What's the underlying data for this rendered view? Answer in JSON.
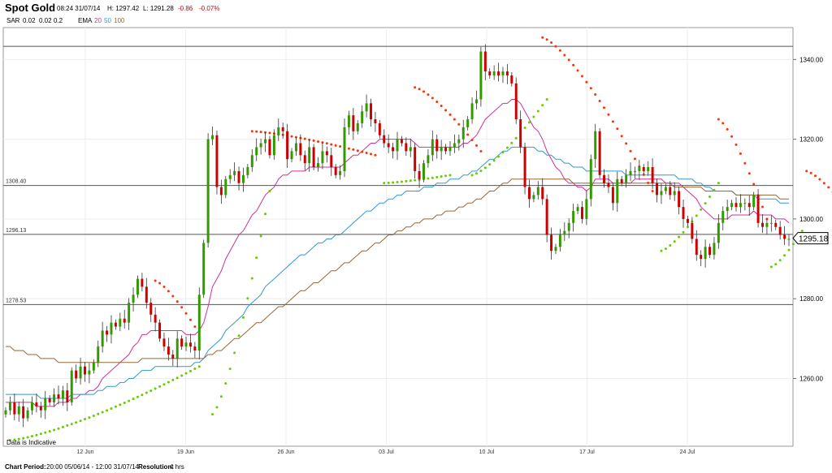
{
  "header": {
    "title": "Spot Gold",
    "timestamp": "08:24 31/07/14",
    "high": "H: 1297.42",
    "low": "L: 1291.28",
    "change": "-0.86",
    "change_pct": "-0.07%"
  },
  "legend": {
    "sar_label": "SAR",
    "sar_params": [
      "0.02",
      "0.02",
      "0.2"
    ],
    "ema_label": "EMA",
    "ema_periods": [
      "20",
      "50",
      "100"
    ],
    "ema_colors": [
      "#cc3399",
      "#3399cc",
      "#996633"
    ]
  },
  "colors": {
    "up": "#339900",
    "down": "#cc0000",
    "sar_up": "#66cc00",
    "sar_down": "#ff3300",
    "change": "#cc0000"
  },
  "footer": {
    "indicative": "Data is Indicative",
    "period_label": "Chart Period:",
    "period_value": "20:00 05/06/14 - 12:00 31/07/14",
    "resolution_label": "Resolution:",
    "resolution_value": "4 hrs"
  },
  "chart_data": {
    "type": "candlestick",
    "ylim": [
      1243,
      1348
    ],
    "y_ticks": [
      "1340.00",
      "1320.00",
      "1300.00",
      "1280.00",
      "1260.00"
    ],
    "y_tick_values": [
      1340,
      1320,
      1300,
      1280,
      1260
    ],
    "x_ticks": [
      "12 Jun",
      "19 Jun",
      "26 Jun",
      "03 Jul",
      "10 Jul",
      "17 Jul",
      "24 Jul"
    ],
    "current_price": "1295.18",
    "current_value": 1295.18,
    "levels": [
      {
        "label": "1308.40",
        "value": 1308.4
      },
      {
        "label": "1296.13",
        "value": 1296.13
      },
      {
        "label": "1278.53",
        "value": 1278.53
      },
      {
        "label": "",
        "value": 1343.3
      }
    ],
    "closes": [
      1252,
      1254,
      1251,
      1253,
      1250,
      1252,
      1254,
      1253,
      1252,
      1255,
      1254,
      1256,
      1255,
      1257,
      1254,
      1262,
      1260,
      1263,
      1261,
      1262,
      1264,
      1268,
      1272,
      1271,
      1274,
      1273,
      1275,
      1274,
      1279,
      1281,
      1285,
      1283,
      1279,
      1276,
      1274,
      1270,
      1268,
      1266,
      1265,
      1270,
      1268,
      1269,
      1268,
      1267,
      1281,
      1294,
      1320,
      1321,
      1308,
      1306,
      1310,
      1311,
      1312,
      1309,
      1311,
      1313,
      1316,
      1318,
      1319,
      1320,
      1316,
      1321,
      1323,
      1322,
      1315,
      1317,
      1319,
      1316,
      1314,
      1318,
      1313,
      1314,
      1317,
      1316,
      1313,
      1311,
      1312,
      1323,
      1326,
      1322,
      1324,
      1327,
      1329,
      1325,
      1324,
      1321,
      1319,
      1318,
      1317,
      1320,
      1319,
      1317,
      1318,
      1312,
      1310,
      1314,
      1316,
      1320,
      1317,
      1318,
      1317,
      1318,
      1319,
      1320,
      1323,
      1325,
      1329,
      1330,
      1342,
      1337,
      1336,
      1337,
      1336,
      1337,
      1336,
      1334,
      1325,
      1318,
      1308,
      1305,
      1306,
      1308,
      1305,
      1296,
      1292,
      1293,
      1296,
      1297,
      1299,
      1302,
      1303,
      1300,
      1305,
      1315,
      1322,
      1311,
      1309,
      1308,
      1304,
      1310,
      1309,
      1311,
      1312,
      1312,
      1313,
      1312,
      1313,
      1309,
      1306,
      1307,
      1308,
      1306,
      1307,
      1303,
      1300,
      1299,
      1295,
      1291,
      1290,
      1293,
      1291,
      1294,
      1299,
      1302,
      1303,
      1304,
      1303,
      1304,
      1304,
      1303,
      1306,
      1299,
      1298,
      1299,
      1299,
      1298,
      1296,
      1295,
      1295
    ],
    "ema_20": [
      1254,
      1254,
      1254,
      1254,
      1254,
      1254,
      1254,
      1253,
      1253,
      1253,
      1253,
      1253,
      1254,
      1254,
      1254,
      1255,
      1255,
      1256,
      1256,
      1257,
      1257,
      1258,
      1260,
      1261,
      1262,
      1263,
      1264,
      1265,
      1266,
      1268,
      1269,
      1271,
      1271,
      1272,
      1272,
      1272,
      1272,
      1272,
      1272,
      1272,
      1272,
      1271,
      1271,
      1271,
      1272,
      1274,
      1278,
      1283,
      1285,
      1287,
      1290,
      1292,
      1294,
      1296,
      1297,
      1299,
      1301,
      1302,
      1304,
      1306,
      1307,
      1308,
      1310,
      1311,
      1311,
      1312,
      1312,
      1312,
      1312,
      1313,
      1313,
      1313,
      1313,
      1313,
      1313,
      1313,
      1313,
      1314,
      1315,
      1316,
      1316,
      1317,
      1318,
      1319,
      1319,
      1320,
      1320,
      1320,
      1320,
      1320,
      1320,
      1320,
      1320,
      1319,
      1318,
      1318,
      1318,
      1318,
      1318,
      1318,
      1318,
      1318,
      1318,
      1318,
      1319,
      1319,
      1320,
      1321,
      1323,
      1325,
      1326,
      1327,
      1328,
      1329,
      1329,
      1330,
      1330,
      1329,
      1327,
      1325,
      1323,
      1322,
      1320,
      1317,
      1315,
      1313,
      1312,
      1310,
      1309,
      1309,
      1308,
      1308,
      1307,
      1308,
      1310,
      1310,
      1310,
      1310,
      1309,
      1309,
      1309,
      1309,
      1309,
      1310,
      1310,
      1310,
      1310,
      1310,
      1310,
      1310,
      1309,
      1309,
      1309,
      1309,
      1308,
      1307,
      1306,
      1305,
      1303,
      1302,
      1301,
      1300,
      1300,
      1300,
      1300,
      1301,
      1301,
      1301,
      1301,
      1301,
      1302,
      1301,
      1301,
      1301,
      1301,
      1300,
      1300,
      1300,
      1299
    ],
    "ema_50": [
      1256,
      1256,
      1256,
      1256,
      1256,
      1256,
      1256,
      1256,
      1255,
      1255,
      1255,
      1255,
      1255,
      1255,
      1255,
      1256,
      1256,
      1256,
      1256,
      1256,
      1256,
      1257,
      1257,
      1258,
      1258,
      1258,
      1259,
      1259,
      1260,
      1260,
      1261,
      1262,
      1262,
      1262,
      1263,
      1263,
      1263,
      1263,
      1263,
      1263,
      1263,
      1263,
      1263,
      1264,
      1264,
      1265,
      1267,
      1268,
      1269,
      1270,
      1272,
      1273,
      1274,
      1275,
      1276,
      1278,
      1279,
      1280,
      1281,
      1283,
      1284,
      1285,
      1286,
      1287,
      1288,
      1289,
      1290,
      1291,
      1291,
      1292,
      1293,
      1294,
      1294,
      1295,
      1295,
      1296,
      1296,
      1297,
      1298,
      1299,
      1300,
      1301,
      1302,
      1302,
      1303,
      1304,
      1304,
      1305,
      1305,
      1306,
      1306,
      1307,
      1307,
      1307,
      1307,
      1308,
      1308,
      1308,
      1309,
      1309,
      1309,
      1310,
      1310,
      1310,
      1311,
      1311,
      1312,
      1312,
      1313,
      1314,
      1315,
      1315,
      1316,
      1317,
      1317,
      1318,
      1318,
      1318,
      1318,
      1318,
      1318,
      1317,
      1317,
      1316,
      1316,
      1315,
      1315,
      1314,
      1314,
      1313,
      1313,
      1313,
      1312,
      1312,
      1312,
      1312,
      1312,
      1312,
      1312,
      1312,
      1312,
      1311,
      1311,
      1311,
      1311,
      1311,
      1311,
      1311,
      1311,
      1311,
      1311,
      1311,
      1311,
      1310,
      1310,
      1310,
      1310,
      1309,
      1309,
      1308,
      1308,
      1307,
      1307,
      1307,
      1307,
      1307,
      1306,
      1306,
      1306,
      1306,
      1306,
      1305,
      1305,
      1305,
      1305,
      1305,
      1304,
      1304,
      1304
    ],
    "ema_100": [
      1268,
      1268,
      1267,
      1267,
      1267,
      1266,
      1266,
      1266,
      1265,
      1265,
      1265,
      1265,
      1264,
      1264,
      1264,
      1264,
      1264,
      1264,
      1264,
      1264,
      1264,
      1264,
      1264,
      1264,
      1264,
      1264,
      1264,
      1264,
      1264,
      1264,
      1264,
      1265,
      1265,
      1265,
      1265,
      1265,
      1265,
      1265,
      1265,
      1265,
      1265,
      1265,
      1265,
      1265,
      1265,
      1265,
      1266,
      1266,
      1267,
      1267,
      1268,
      1269,
      1270,
      1270,
      1271,
      1272,
      1273,
      1274,
      1274,
      1275,
      1276,
      1277,
      1278,
      1278,
      1279,
      1280,
      1281,
      1282,
      1282,
      1283,
      1284,
      1284,
      1285,
      1286,
      1287,
      1287,
      1288,
      1289,
      1289,
      1290,
      1291,
      1292,
      1292,
      1293,
      1294,
      1294,
      1295,
      1296,
      1296,
      1297,
      1297,
      1298,
      1298,
      1299,
      1299,
      1300,
      1300,
      1300,
      1301,
      1301,
      1302,
      1302,
      1302,
      1303,
      1303,
      1304,
      1304,
      1305,
      1305,
      1306,
      1307,
      1307,
      1308,
      1309,
      1309,
      1310,
      1310,
      1310,
      1310,
      1310,
      1310,
      1310,
      1310,
      1310,
      1310,
      1310,
      1310,
      1310,
      1310,
      1309,
      1309,
      1309,
      1309,
      1309,
      1309,
      1309,
      1309,
      1309,
      1309,
      1309,
      1309,
      1309,
      1309,
      1309,
      1309,
      1309,
      1309,
      1309,
      1309,
      1309,
      1309,
      1309,
      1308,
      1308,
      1308,
      1308,
      1308,
      1308,
      1308,
      1307,
      1307,
      1307,
      1307,
      1307,
      1307,
      1307,
      1306,
      1306,
      1306,
      1306,
      1306,
      1306,
      1306,
      1306,
      1306,
      1306,
      1305,
      1305,
      1305
    ],
    "sar": [
      {
        "start": 1,
        "end": 44,
        "from": 1244.5,
        "to": 1263,
        "side": "up"
      },
      {
        "start": 34,
        "end": 43,
        "from": 1284.5,
        "to": 1273,
        "side": "down"
      },
      {
        "start": 47,
        "end": 60,
        "from": 1251,
        "to": 1307,
        "side": "up"
      },
      {
        "start": 56,
        "end": 84,
        "from": 1322,
        "to": 1316,
        "side": "down"
      },
      {
        "start": 86,
        "end": 101,
        "from": 1309,
        "to": 1311,
        "side": "up"
      },
      {
        "start": 93,
        "end": 108,
        "from": 1333,
        "to": 1317,
        "side": "down"
      },
      {
        "start": 106,
        "end": 123,
        "from": 1311,
        "to": 1330,
        "side": "up"
      },
      {
        "start": 122,
        "end": 147,
        "from": 1345.5,
        "to": 1307,
        "side": "down"
      },
      {
        "start": 149,
        "end": 162,
        "from": 1292,
        "to": 1309,
        "side": "up"
      },
      {
        "start": 162,
        "end": 173,
        "from": 1325,
        "to": 1300,
        "side": "down"
      },
      {
        "start": 174,
        "end": 181,
        "from": 1288,
        "to": 1297,
        "side": "up"
      },
      {
        "start": 182,
        "end": 191,
        "from": 1312,
        "to": 1303,
        "side": "down"
      }
    ]
  }
}
